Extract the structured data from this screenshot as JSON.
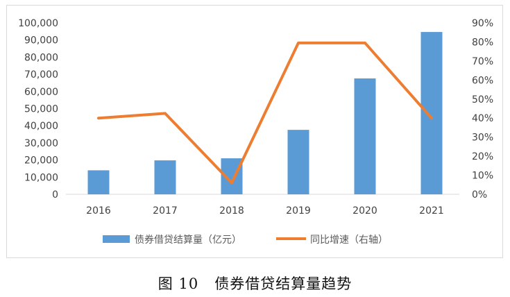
{
  "chart_data": {
    "type": "bar",
    "categories": [
      "2016",
      "2017",
      "2018",
      "2019",
      "2020",
      "2021"
    ],
    "series": [
      {
        "name": "债券借贷结算量（亿元）",
        "kind": "bar",
        "axis": "left",
        "color": "#5b9bd5",
        "values": [
          14000,
          19800,
          21000,
          37600,
          67600,
          94700
        ]
      },
      {
        "name": "同比增速（右轴）",
        "kind": "line",
        "axis": "right",
        "color": "#ed7d31",
        "values": [
          0.4,
          0.425,
          0.06,
          0.795,
          0.795,
          0.4
        ]
      }
    ],
    "y_left": {
      "min": 0,
      "max": 100000,
      "step": 10000,
      "tick_labels": [
        "0",
        "10,000",
        "20,000",
        "30,000",
        "40,000",
        "50,000",
        "60,000",
        "70,000",
        "80,000",
        "90,000",
        "100,000"
      ]
    },
    "y_right": {
      "min": 0,
      "max": 0.9,
      "step": 0.1,
      "tick_labels": [
        "0%",
        "10%",
        "20%",
        "30%",
        "40%",
        "50%",
        "60%",
        "70%",
        "80%",
        "90%"
      ]
    },
    "grid": false,
    "legend_position": "bottom"
  },
  "caption": {
    "figure_no": "图 10",
    "title": "债券借贷结算量趋势"
  }
}
